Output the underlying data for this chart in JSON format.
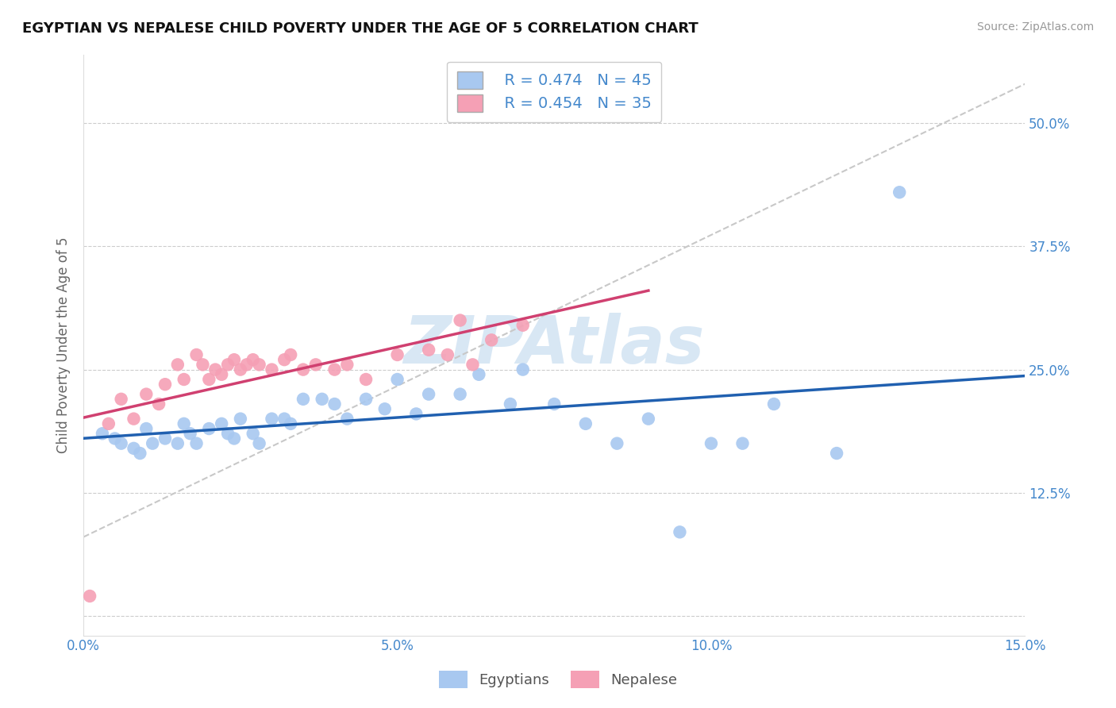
{
  "title": "EGYPTIAN VS NEPALESE CHILD POVERTY UNDER THE AGE OF 5 CORRELATION CHART",
  "source_text": "Source: ZipAtlas.com",
  "ylabel": "Child Poverty Under the Age of 5",
  "xlim": [
    0.0,
    0.15
  ],
  "ylim": [
    -0.02,
    0.57
  ],
  "ytick_vals": [
    0.0,
    0.125,
    0.25,
    0.375,
    0.5
  ],
  "ytick_labels": [
    "",
    "12.5%",
    "25.0%",
    "37.5%",
    "50.0%"
  ],
  "xtick_vals": [
    0.0,
    0.05,
    0.1,
    0.15
  ],
  "xtick_labels": [
    "0.0%",
    "5.0%",
    "10.0%",
    "15.0%"
  ],
  "legend_line1": "R = 0.474   N = 45",
  "legend_line2": "R = 0.454   N = 35",
  "egyptian_color": "#a8c8f0",
  "nepalese_color": "#f5a0b5",
  "trend_egyptian_color": "#2060b0",
  "trend_nepalese_color": "#d04070",
  "ref_line_color": "#c8c8c8",
  "tick_color": "#4488cc",
  "watermark_color": "#c8ddf0",
  "eg_x": [
    0.003,
    0.005,
    0.006,
    0.008,
    0.009,
    0.01,
    0.011,
    0.013,
    0.015,
    0.016,
    0.017,
    0.018,
    0.02,
    0.022,
    0.023,
    0.024,
    0.025,
    0.027,
    0.028,
    0.03,
    0.032,
    0.033,
    0.035,
    0.038,
    0.04,
    0.042,
    0.045,
    0.048,
    0.05,
    0.053,
    0.055,
    0.06,
    0.063,
    0.068,
    0.07,
    0.075,
    0.08,
    0.085,
    0.09,
    0.095,
    0.1,
    0.105,
    0.11,
    0.12,
    0.13
  ],
  "eg_y": [
    0.185,
    0.18,
    0.175,
    0.17,
    0.165,
    0.19,
    0.175,
    0.18,
    0.175,
    0.195,
    0.185,
    0.175,
    0.19,
    0.195,
    0.185,
    0.18,
    0.2,
    0.185,
    0.175,
    0.2,
    0.2,
    0.195,
    0.22,
    0.22,
    0.215,
    0.2,
    0.22,
    0.21,
    0.24,
    0.205,
    0.225,
    0.225,
    0.245,
    0.215,
    0.25,
    0.215,
    0.195,
    0.175,
    0.2,
    0.085,
    0.175,
    0.175,
    0.215,
    0.165,
    0.43
  ],
  "np_x": [
    0.001,
    0.004,
    0.006,
    0.008,
    0.01,
    0.012,
    0.013,
    0.015,
    0.016,
    0.018,
    0.019,
    0.02,
    0.021,
    0.022,
    0.023,
    0.024,
    0.025,
    0.026,
    0.027,
    0.028,
    0.03,
    0.032,
    0.033,
    0.035,
    0.037,
    0.04,
    0.042,
    0.045,
    0.05,
    0.055,
    0.058,
    0.06,
    0.062,
    0.065,
    0.07
  ],
  "np_y": [
    0.02,
    0.195,
    0.22,
    0.2,
    0.225,
    0.215,
    0.235,
    0.255,
    0.24,
    0.265,
    0.255,
    0.24,
    0.25,
    0.245,
    0.255,
    0.26,
    0.25,
    0.255,
    0.26,
    0.255,
    0.25,
    0.26,
    0.265,
    0.25,
    0.255,
    0.25,
    0.255,
    0.24,
    0.265,
    0.27,
    0.265,
    0.3,
    0.255,
    0.28,
    0.295
  ]
}
